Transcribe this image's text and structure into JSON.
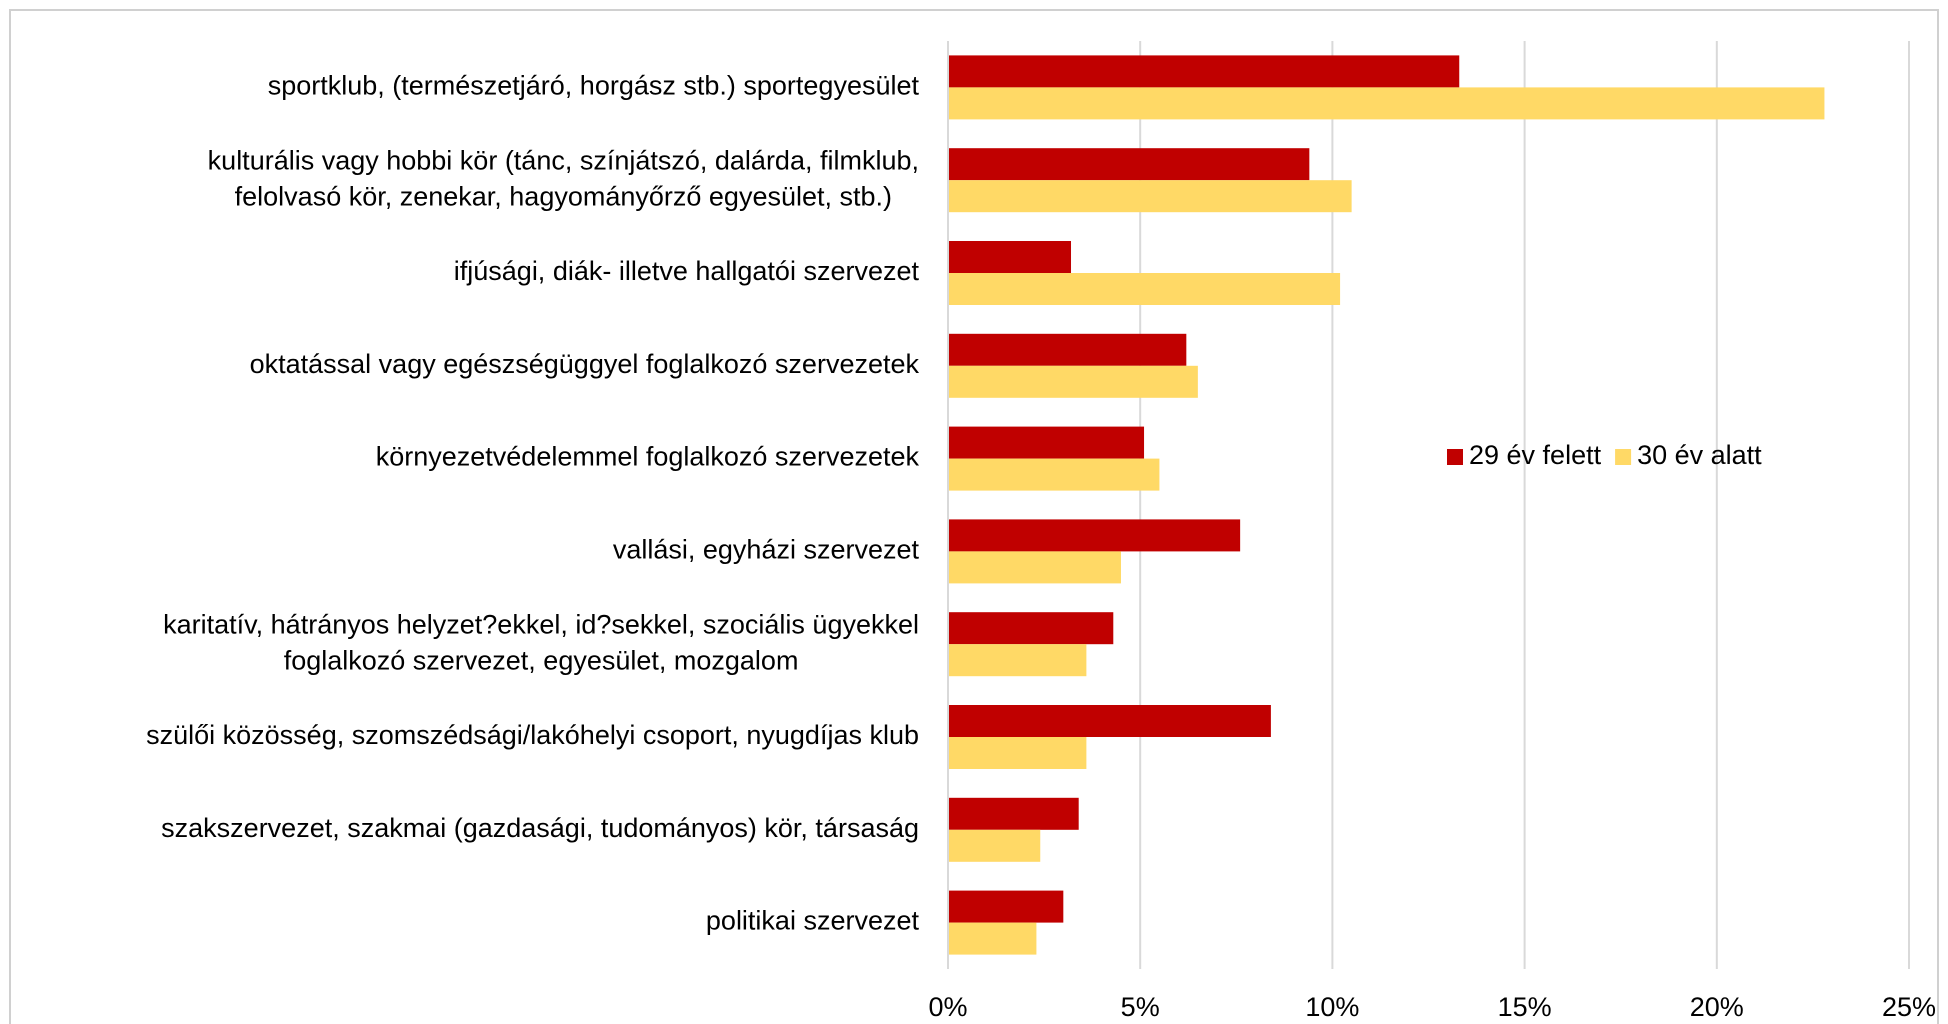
{
  "chart_data": {
    "type": "barh",
    "categories": [
      [
        "sportklub, (természetjáró, horgász stb.) sportegyesület"
      ],
      [
        "kulturális vagy hobbi kör (tánc, színjátszó, dalárda, filmklub,",
        "felolvasó kör, zenekar, hagyományőrző egyesület, stb.)"
      ],
      [
        "ifjúsági, diák- illetve hallgatói szervezet"
      ],
      [
        "oktatással vagy egészségüggyel foglalkozó szervezetek"
      ],
      [
        "környezetvédelemmel foglalkozó szervezetek"
      ],
      [
        "vallási, egyházi szervezet"
      ],
      [
        "karitatív, hátrányos helyzet?ekkel, id?sekkel, szociális ügyekkel",
        "foglalkozó szervezet, egyesület, mozgalom"
      ],
      [
        "szülői közösség, szomszédsági/lakóhelyi csoport, nyugdíjas klub"
      ],
      [
        "szakszervezet, szakmai (gazdasági, tudományos) kör, társaság"
      ],
      [
        "politikai szervezet"
      ]
    ],
    "series": [
      {
        "name": "29 év felett",
        "color": "#c00000",
        "values": [
          13.3,
          9.4,
          3.2,
          6.2,
          5.1,
          7.6,
          4.3,
          8.4,
          3.4,
          3.0
        ]
      },
      {
        "name": "30 év alatt",
        "color": "#ffd966",
        "values": [
          22.8,
          10.5,
          10.2,
          6.5,
          5.5,
          4.5,
          3.6,
          3.6,
          2.4,
          2.3
        ]
      }
    ],
    "xlim": [
      0,
      25
    ],
    "xticks": [
      {
        "value": 0,
        "label": "0%"
      },
      {
        "value": 5,
        "label": "5%"
      },
      {
        "value": 10,
        "label": "10%"
      },
      {
        "value": 15,
        "label": "15%"
      },
      {
        "value": 20,
        "label": "20%"
      },
      {
        "value": 25,
        "label": "25%"
      }
    ],
    "grid": true,
    "legend": "right"
  }
}
